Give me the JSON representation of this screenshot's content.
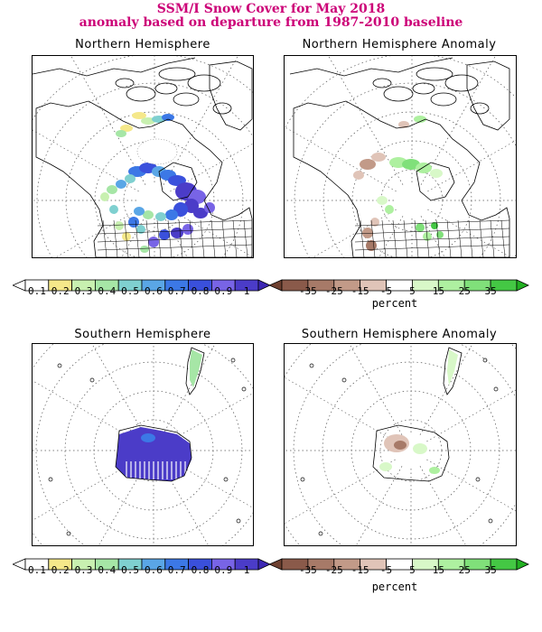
{
  "figure": {
    "title_line1": "SSM/I Snow Cover for May 2018",
    "title_line2": "anomaly based on departure from 1987-2010 baseline"
  },
  "panels": [
    {
      "id": "nh",
      "title": "Northern Hemisphere"
    },
    {
      "id": "nh_anom",
      "title": "Northern Hemisphere Anomaly"
    },
    {
      "id": "sh",
      "title": "Southern Hemisphere"
    },
    {
      "id": "sh_anom",
      "title": "Southern Hemisphere Anomaly"
    }
  ],
  "colorbars": {
    "cover": {
      "ticks": [
        "0.1",
        "0.2",
        "0.3",
        "0.4",
        "0.5",
        "0.6",
        "0.7",
        "0.8",
        "0.9",
        "1"
      ],
      "colors": [
        "#ffffff",
        "#f5e88a",
        "#c8f0b0",
        "#a6e6a6",
        "#7fd0d0",
        "#5aa6e6",
        "#3c78e6",
        "#3a50dc",
        "#7864e6",
        "#4b3cc8"
      ],
      "end_color": "#3c28b4"
    },
    "anomaly": {
      "ticks": [
        "-35",
        "-25",
        "-15",
        "-5",
        "5",
        "15",
        "25",
        "35"
      ],
      "colors": [
        "#8a5a4a",
        "#a77a68",
        "#c29a88",
        "#e0c4b8",
        "#ffffff",
        "#d8f8c8",
        "#aef0a0",
        "#80e07a",
        "#44c844"
      ],
      "start_color": "#6e4030",
      "end_color": "#22b022",
      "unit": "percent"
    }
  },
  "map_colors": {
    "coast": "#000000",
    "grid": "#555555"
  }
}
